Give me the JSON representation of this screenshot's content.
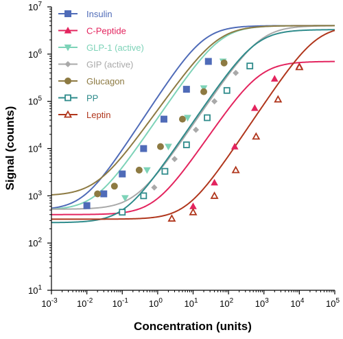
{
  "chart_data": {
    "type": "scatter",
    "xlabel": "Concentration (units)",
    "ylabel": "Signal (counts)",
    "x_scale": "log",
    "y_scale": "log",
    "xlim": [
      0.001,
      100000
    ],
    "ylim": [
      10,
      10000000
    ],
    "x_ticks": [
      {
        "base": "10",
        "exp": "-3"
      },
      {
        "base": "10",
        "exp": "-2"
      },
      {
        "base": "10",
        "exp": "-1"
      },
      {
        "base": "10",
        "exp": "0"
      },
      {
        "base": "10",
        "exp": "1"
      },
      {
        "base": "10",
        "exp": "2"
      },
      {
        "base": "10",
        "exp": "3"
      },
      {
        "base": "10",
        "exp": "4"
      },
      {
        "base": "10",
        "exp": "5"
      }
    ],
    "y_ticks": [
      {
        "base": "10",
        "exp": "1"
      },
      {
        "base": "10",
        "exp": "2"
      },
      {
        "base": "10",
        "exp": "3"
      },
      {
        "base": "10",
        "exp": "4"
      },
      {
        "base": "10",
        "exp": "5"
      },
      {
        "base": "10",
        "exp": "6"
      },
      {
        "base": "10",
        "exp": "7"
      }
    ],
    "grid": false,
    "legend": "top-left",
    "series": [
      {
        "name": "Insulin",
        "color": "#4f6bb8",
        "marker": "square-filled",
        "curve": {
          "bottom": 500,
          "top": 4000000,
          "ec50": 20,
          "hill": 1.15
        },
        "points": [
          [
            0.01,
            620
          ],
          [
            0.03,
            1100
          ],
          [
            0.1,
            2900
          ],
          [
            0.4,
            10000
          ],
          [
            1.5,
            42000
          ],
          [
            6.5,
            180000
          ],
          [
            27,
            700000
          ]
        ]
      },
      {
        "name": "C-Peptide",
        "color": "#e3245e",
        "marker": "triangle-filled",
        "curve": {
          "bottom": 400,
          "top": 700000,
          "ec50": 750,
          "hill": 1.1
        },
        "points": [
          [
            10,
            600
          ],
          [
            40,
            1900
          ],
          [
            150,
            11000
          ],
          [
            550,
            72000
          ],
          [
            2000,
            300000
          ],
          [
            10000,
            560000
          ]
        ]
      },
      {
        "name": "GLP-1 (active)",
        "color": "#7dd3b8",
        "marker": "triangle-down-filled",
        "curve": {
          "bottom": 500,
          "top": 4000000,
          "ec50": 60,
          "hill": 1.1
        },
        "points": [
          [
            0.12,
            900
          ],
          [
            0.5,
            3500
          ],
          [
            2,
            11000
          ],
          [
            7,
            45000
          ],
          [
            20,
            190000
          ],
          [
            70,
            700000
          ]
        ]
      },
      {
        "name": "GIP (active)",
        "color": "#a9a9a9",
        "marker": "diamond-filled",
        "curve": {
          "bottom": 520,
          "top": 4000000,
          "ec50": 800,
          "hill": 1.1
        },
        "points": [
          [
            0.8,
            1500
          ],
          [
            3,
            6000
          ],
          [
            12,
            25000
          ],
          [
            40,
            100000
          ],
          [
            160,
            400000
          ]
        ]
      },
      {
        "name": "Glucagon",
        "color": "#8d7a42",
        "marker": "circle-filled",
        "curve": {
          "bottom": 1000,
          "top": 4000000,
          "ec50": 50,
          "hill": 1.05
        },
        "points": [
          [
            0.02,
            1100
          ],
          [
            0.06,
            1600
          ],
          [
            0.3,
            3500
          ],
          [
            1.2,
            11000
          ],
          [
            5,
            42000
          ],
          [
            20,
            160000
          ],
          [
            75,
            650000
          ]
        ]
      },
      {
        "name": "PP",
        "color": "#2e8b8b",
        "marker": "square-open",
        "curve": {
          "bottom": 270,
          "top": 3300000,
          "ec50": 600,
          "hill": 1.1
        },
        "points": [
          [
            0.1,
            450
          ],
          [
            0.4,
            1000
          ],
          [
            1.6,
            3300
          ],
          [
            6.5,
            12000
          ],
          [
            25,
            45000
          ],
          [
            90,
            170000
          ],
          [
            400,
            560000
          ]
        ]
      },
      {
        "name": "Leptin",
        "color": "#b0361c",
        "marker": "triangle-open",
        "curve": {
          "bottom": 320,
          "top": 4000000,
          "ec50": 30000,
          "hill": 1.12
        },
        "points": [
          [
            2.5,
            330
          ],
          [
            10,
            450
          ],
          [
            40,
            1000
          ],
          [
            160,
            3500
          ],
          [
            600,
            18000
          ],
          [
            2500,
            110000
          ],
          [
            10000,
            530000
          ]
        ]
      }
    ]
  }
}
